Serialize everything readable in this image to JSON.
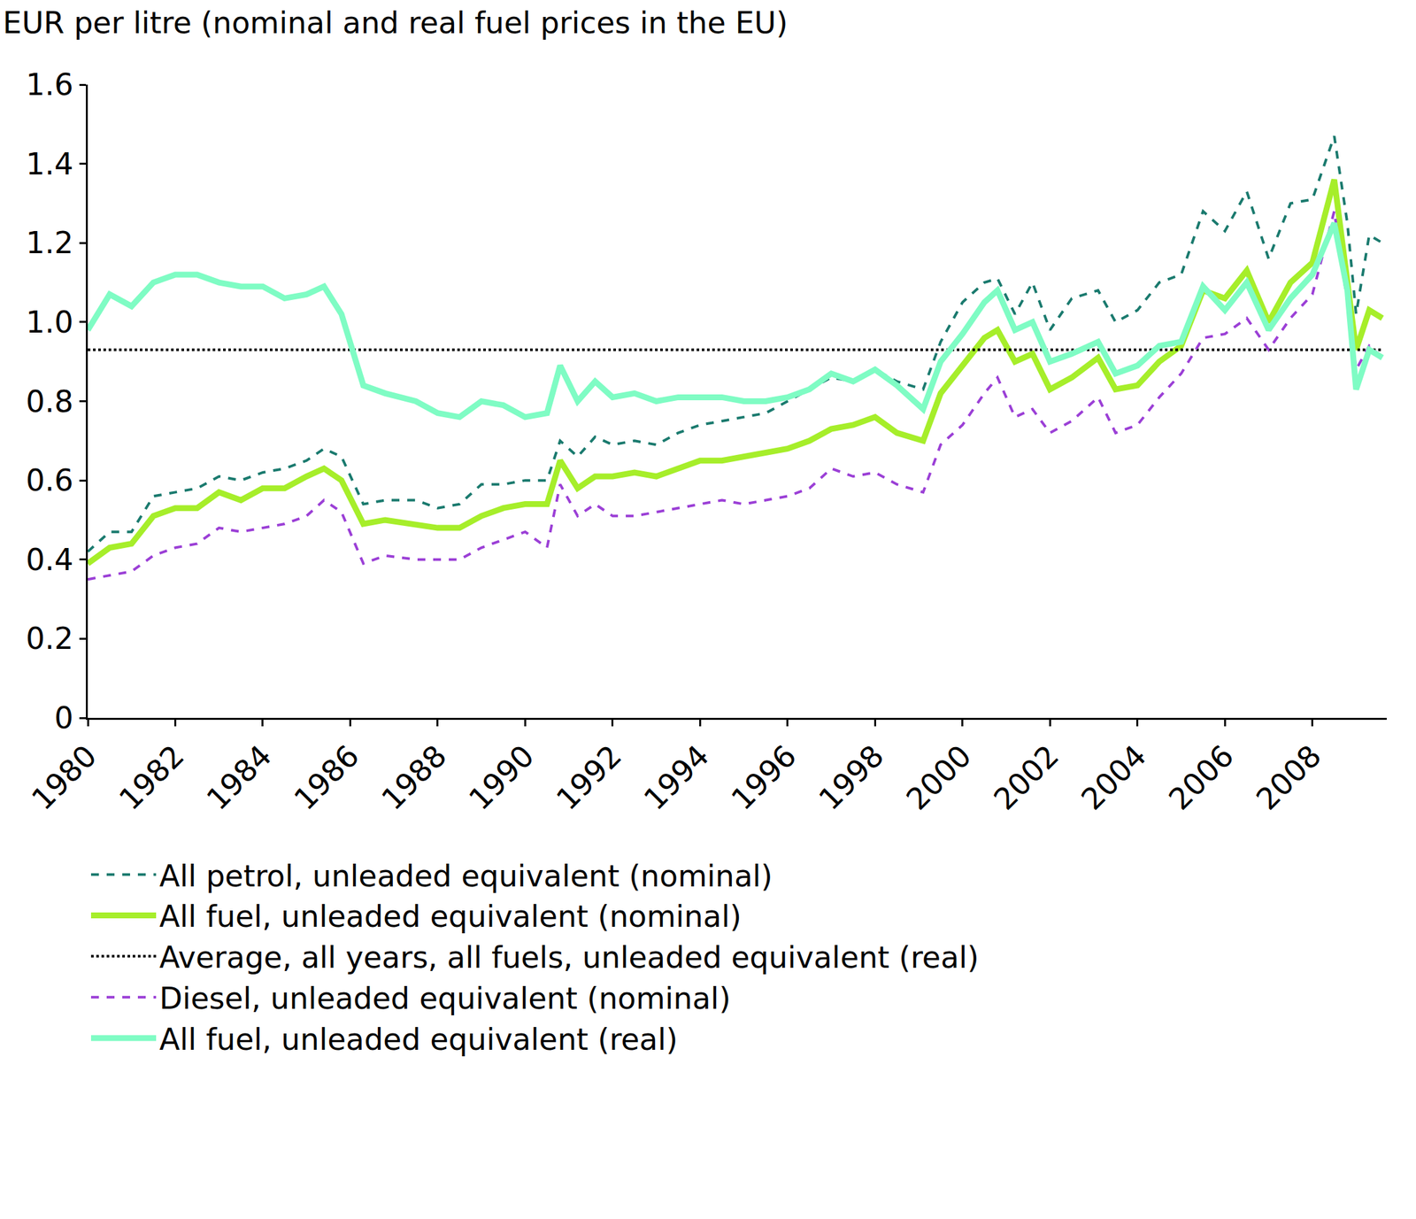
{
  "chart_data": {
    "type": "line",
    "title": "EUR per litre (nominal and real fuel prices in the EU)",
    "x": [
      1980,
      1980.5,
      1981,
      1981.5,
      1982,
      1982.5,
      1983,
      1983.5,
      1984,
      1984.5,
      1985,
      1985.4,
      1985.8,
      1986.3,
      1986.8,
      1987.5,
      1988,
      1988.5,
      1989,
      1989.5,
      1990,
      1990.5,
      1990.8,
      1991.2,
      1991.6,
      1992,
      1992.5,
      1993,
      1993.5,
      1994,
      1994.5,
      1995,
      1995.5,
      1996,
      1996.5,
      1997,
      1997.5,
      1998,
      1998.5,
      1999.1,
      1999.5,
      2000,
      2000.5,
      2000.8,
      2001.2,
      2001.6,
      2002,
      2002.5,
      2003.1,
      2003.5,
      2004,
      2004.5,
      2005,
      2005.5,
      2006,
      2006.5,
      2007,
      2007.5,
      2008,
      2008.5,
      2008.8,
      2009,
      2009.3,
      2009.6
    ],
    "series": [
      {
        "name": "All petrol, unleaded equivalent (nominal)",
        "color": "#1a7a6e",
        "line_style": "dash",
        "values": [
          0.42,
          0.47,
          0.47,
          0.56,
          0.57,
          0.58,
          0.61,
          0.6,
          0.62,
          0.63,
          0.65,
          0.68,
          0.66,
          0.54,
          0.55,
          0.55,
          0.53,
          0.54,
          0.59,
          0.59,
          0.6,
          0.6,
          0.7,
          0.66,
          0.71,
          0.69,
          0.7,
          0.69,
          0.72,
          0.74,
          0.75,
          0.76,
          0.77,
          0.8,
          0.83,
          0.86,
          0.85,
          0.88,
          0.85,
          0.83,
          0.95,
          1.05,
          1.1,
          1.11,
          1.02,
          1.1,
          0.98,
          1.06,
          1.08,
          1.0,
          1.03,
          1.1,
          1.12,
          1.28,
          1.23,
          1.33,
          1.16,
          1.3,
          1.31,
          1.47,
          1.25,
          1.02,
          1.22,
          1.2
        ]
      },
      {
        "name": "All fuel, unleaded equivalent (nominal)",
        "color": "#a6ee2a",
        "line_style": "solid",
        "values": [
          0.39,
          0.43,
          0.44,
          0.51,
          0.53,
          0.53,
          0.57,
          0.55,
          0.58,
          0.58,
          0.61,
          0.63,
          0.6,
          0.49,
          0.5,
          0.49,
          0.48,
          0.48,
          0.51,
          0.53,
          0.54,
          0.54,
          0.65,
          0.58,
          0.61,
          0.61,
          0.62,
          0.61,
          0.63,
          0.65,
          0.65,
          0.66,
          0.67,
          0.68,
          0.7,
          0.73,
          0.74,
          0.76,
          0.72,
          0.7,
          0.82,
          0.89,
          0.96,
          0.98,
          0.9,
          0.92,
          0.83,
          0.86,
          0.91,
          0.83,
          0.84,
          0.9,
          0.94,
          1.08,
          1.06,
          1.13,
          1.0,
          1.1,
          1.15,
          1.36,
          1.1,
          0.93,
          1.03,
          1.01
        ]
      },
      {
        "name": "Average, all years, all fuels, unleaded equivalent (real)",
        "color": "#000000",
        "line_style": "dot",
        "values": [
          0.93,
          0.93,
          0.93,
          0.93,
          0.93,
          0.93,
          0.93,
          0.93,
          0.93,
          0.93,
          0.93,
          0.93,
          0.93,
          0.93,
          0.93,
          0.93,
          0.93,
          0.93,
          0.93,
          0.93,
          0.93,
          0.93,
          0.93,
          0.93,
          0.93,
          0.93,
          0.93,
          0.93,
          0.93,
          0.93,
          0.93,
          0.93,
          0.93,
          0.93,
          0.93,
          0.93,
          0.93,
          0.93,
          0.93,
          0.93,
          0.93,
          0.93,
          0.93,
          0.93,
          0.93,
          0.93,
          0.93,
          0.93,
          0.93,
          0.93,
          0.93,
          0.93,
          0.93,
          0.93,
          0.93,
          0.93,
          0.93,
          0.93,
          0.93,
          0.93,
          0.93,
          0.93,
          0.93,
          0.93
        ]
      },
      {
        "name": "Diesel, unleaded equivalent (nominal)",
        "color": "#9b3fd6",
        "line_style": "dash",
        "values": [
          0.35,
          0.36,
          0.37,
          0.41,
          0.43,
          0.44,
          0.48,
          0.47,
          0.48,
          0.49,
          0.51,
          0.55,
          0.52,
          0.39,
          0.41,
          0.4,
          0.4,
          0.4,
          0.43,
          0.45,
          0.47,
          0.43,
          0.59,
          0.51,
          0.54,
          0.51,
          0.51,
          0.52,
          0.53,
          0.54,
          0.55,
          0.54,
          0.55,
          0.56,
          0.58,
          0.63,
          0.61,
          0.62,
          0.59,
          0.57,
          0.69,
          0.74,
          0.82,
          0.86,
          0.76,
          0.78,
          0.72,
          0.75,
          0.81,
          0.72,
          0.74,
          0.81,
          0.87,
          0.96,
          0.97,
          1.01,
          0.93,
          1.01,
          1.07,
          1.28,
          1.05,
          0.88,
          0.94,
          0.91
        ]
      },
      {
        "name": "All fuel, unleaded equivalent (real)",
        "color": "#7ffcc4",
        "line_style": "solid",
        "values": [
          0.98,
          1.07,
          1.04,
          1.1,
          1.12,
          1.12,
          1.1,
          1.09,
          1.09,
          1.06,
          1.07,
          1.09,
          1.02,
          0.84,
          0.82,
          0.8,
          0.77,
          0.76,
          0.8,
          0.79,
          0.76,
          0.77,
          0.89,
          0.8,
          0.85,
          0.81,
          0.82,
          0.8,
          0.81,
          0.81,
          0.81,
          0.8,
          0.8,
          0.81,
          0.83,
          0.87,
          0.85,
          0.88,
          0.84,
          0.78,
          0.9,
          0.97,
          1.05,
          1.08,
          0.98,
          1.0,
          0.9,
          0.92,
          0.95,
          0.87,
          0.89,
          0.94,
          0.95,
          1.09,
          1.03,
          1.1,
          0.98,
          1.06,
          1.12,
          1.25,
          1.08,
          0.83,
          0.93,
          0.91
        ]
      }
    ],
    "xlim": [
      1980,
      2009.7
    ],
    "xticks": [
      1980,
      1982,
      1984,
      1986,
      1988,
      1990,
      1992,
      1994,
      1996,
      1998,
      2000,
      2002,
      2004,
      2006,
      2008
    ],
    "ylim": [
      0,
      1.6
    ],
    "yticks": [
      0,
      0.2,
      0.4,
      0.6,
      0.8,
      {
        "value": 1,
        "label": "1.0"
      },
      1.2,
      1.4,
      1.6
    ],
    "grid": false,
    "legend": "bottom"
  }
}
